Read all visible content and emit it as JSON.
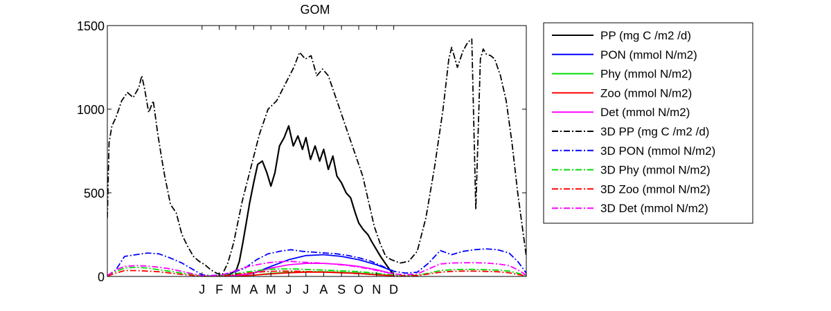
{
  "chart_data": {
    "type": "line",
    "title": "GOM",
    "xlabel": "",
    "ylabel": "",
    "xlim": [
      0,
      730
    ],
    "ylim": [
      0,
      1500
    ],
    "yticks": [
      0,
      500,
      1000,
      1500
    ],
    "month_ticks": {
      "labels": [
        "J",
        "F",
        "M",
        "A",
        "M",
        "J",
        "J",
        "A",
        "S",
        "O",
        "N",
        "D"
      ],
      "positions": [
        165,
        195,
        224,
        255,
        285,
        316,
        346,
        377,
        408,
        438,
        469,
        499
      ]
    },
    "legend_position": "outside-right",
    "series": [
      {
        "name": "PP (mg C /m2 /d)",
        "color": "#000000",
        "dash": "solid",
        "x": [
          165,
          180,
          195,
          205,
          215,
          225,
          230,
          236,
          242,
          248,
          255,
          262,
          270,
          278,
          285,
          292,
          300,
          308,
          316,
          324,
          332,
          340,
          346,
          354,
          362,
          370,
          377,
          385,
          393,
          400,
          408,
          416,
          424,
          432,
          438,
          446,
          454,
          462,
          469,
          476,
          484,
          492,
          499
        ],
        "y": [
          0,
          0,
          2,
          5,
          15,
          40,
          90,
          200,
          320,
          440,
          560,
          670,
          690,
          620,
          540,
          620,
          780,
          830,
          900,
          780,
          840,
          760,
          830,
          700,
          780,
          690,
          760,
          640,
          720,
          600,
          560,
          500,
          470,
          380,
          320,
          280,
          250,
          200,
          160,
          120,
          80,
          40,
          10
        ]
      },
      {
        "name": "PON (mmol N/m2)",
        "color": "#0000ff",
        "dash": "solid",
        "x": [
          165,
          195,
          224,
          255,
          285,
          316,
          346,
          377,
          408,
          438,
          469,
          499
        ],
        "y": [
          0,
          2,
          5,
          20,
          60,
          100,
          125,
          130,
          120,
          100,
          70,
          30
        ]
      },
      {
        "name": "Phy (mmol N/m2)",
        "color": "#00dd00",
        "dash": "solid",
        "x": [
          165,
          195,
          224,
          255,
          285,
          316,
          346,
          377,
          408,
          438,
          469,
          499
        ],
        "y": [
          0,
          1,
          3,
          8,
          18,
          25,
          28,
          28,
          25,
          20,
          12,
          5
        ]
      },
      {
        "name": "Zoo (mmol N/m2)",
        "color": "#ff0000",
        "dash": "solid",
        "x": [
          165,
          195,
          224,
          255,
          285,
          316,
          346,
          377,
          408,
          438,
          469,
          499
        ],
        "y": [
          0,
          1,
          3,
          8,
          15,
          22,
          25,
          25,
          22,
          18,
          10,
          4
        ]
      },
      {
        "name": "Det (mmol N/m2)",
        "color": "#ff00ff",
        "dash": "solid",
        "x": [
          165,
          195,
          224,
          255,
          285,
          316,
          346,
          377,
          408,
          438,
          469,
          499
        ],
        "y": [
          0,
          2,
          6,
          20,
          50,
          70,
          78,
          78,
          72,
          60,
          40,
          15
        ]
      },
      {
        "name": "3D PP (mg C /m2 /d)",
        "color": "#000000",
        "dash": "dashdot",
        "x": [
          0,
          3,
          8,
          15,
          25,
          35,
          45,
          55,
          60,
          65,
          72,
          80,
          88,
          95,
          100,
          110,
          120,
          130,
          140,
          150,
          160,
          170,
          180,
          190,
          200,
          210,
          220,
          235,
          250,
          265,
          280,
          295,
          310,
          325,
          335,
          345,
          355,
          365,
          375,
          385,
          395,
          405,
          415,
          425,
          435,
          445,
          455,
          465,
          475,
          485,
          495,
          510,
          525,
          540,
          555,
          570,
          585,
          595,
          600,
          610,
          620,
          628,
          635,
          642,
          650,
          655,
          660,
          668,
          675,
          685,
          695,
          705,
          715,
          730
        ],
        "y": [
          350,
          800,
          900,
          950,
          1050,
          1100,
          1070,
          1130,
          1200,
          1120,
          980,
          1050,
          850,
          700,
          600,
          430,
          380,
          250,
          180,
          120,
          90,
          70,
          40,
          20,
          10,
          80,
          200,
          450,
          650,
          850,
          1000,
          1050,
          1150,
          1250,
          1340,
          1300,
          1320,
          1200,
          1240,
          1200,
          1100,
          1000,
          900,
          800,
          700,
          600,
          450,
          300,
          200,
          120,
          100,
          80,
          90,
          150,
          350,
          650,
          1000,
          1300,
          1370,
          1250,
          1350,
          1400,
          1420,
          400,
          1300,
          1360,
          1330,
          1320,
          1300,
          1200,
          1050,
          800,
          500,
          120
        ]
      },
      {
        "name": "3D PON (mmol N/m2)",
        "color": "#0000ff",
        "dash": "dashdot",
        "x": [
          0,
          15,
          30,
          50,
          70,
          90,
          110,
          130,
          150,
          165,
          180,
          200,
          220,
          240,
          260,
          280,
          300,
          320,
          340,
          360,
          380,
          400,
          420,
          440,
          460,
          480,
          500,
          520,
          540,
          560,
          580,
          600,
          620,
          640,
          660,
          680,
          700,
          715,
          730
        ],
        "y": [
          5,
          40,
          120,
          130,
          140,
          135,
          110,
          80,
          40,
          10,
          5,
          10,
          25,
          50,
          100,
          135,
          150,
          160,
          150,
          145,
          140,
          135,
          125,
          110,
          90,
          60,
          30,
          20,
          25,
          80,
          155,
          130,
          150,
          160,
          165,
          160,
          140,
          90,
          20
        ]
      },
      {
        "name": "3D Phy (mmol N/m2)",
        "color": "#00dd00",
        "dash": "dashdot",
        "x": [
          0,
          15,
          30,
          50,
          70,
          90,
          110,
          130,
          150,
          165,
          180,
          200,
          220,
          240,
          260,
          280,
          300,
          320,
          340,
          360,
          380,
          400,
          420,
          440,
          460,
          480,
          500,
          520,
          540,
          560,
          580,
          600,
          620,
          640,
          660,
          680,
          700,
          715,
          730
        ],
        "y": [
          5,
          30,
          50,
          55,
          50,
          40,
          30,
          20,
          10,
          3,
          2,
          5,
          15,
          25,
          35,
          42,
          45,
          45,
          43,
          40,
          38,
          35,
          32,
          28,
          22,
          15,
          8,
          5,
          8,
          20,
          35,
          40,
          42,
          42,
          40,
          38,
          32,
          20,
          5
        ]
      },
      {
        "name": "3D Zoo (mmol N/m2)",
        "color": "#ff0000",
        "dash": "dashdot",
        "x": [
          0,
          15,
          30,
          50,
          70,
          90,
          110,
          130,
          150,
          165,
          180,
          200,
          220,
          240,
          260,
          280,
          300,
          320,
          340,
          360,
          380,
          400,
          420,
          440,
          460,
          480,
          500,
          520,
          540,
          560,
          580,
          600,
          620,
          640,
          660,
          680,
          700,
          715,
          730
        ],
        "y": [
          2,
          20,
          35,
          35,
          32,
          28,
          20,
          12,
          6,
          2,
          1,
          3,
          10,
          18,
          25,
          30,
          32,
          32,
          30,
          28,
          26,
          24,
          20,
          16,
          12,
          8,
          4,
          3,
          5,
          15,
          25,
          30,
          32,
          32,
          30,
          28,
          22,
          12,
          3
        ]
      },
      {
        "name": "3D Det (mmol N/m2)",
        "color": "#ff00ff",
        "dash": "dashdot",
        "x": [
          0,
          15,
          30,
          50,
          70,
          90,
          110,
          130,
          150,
          165,
          180,
          200,
          220,
          240,
          260,
          280,
          300,
          320,
          340,
          360,
          380,
          400,
          420,
          440,
          460,
          480,
          500,
          520,
          540,
          560,
          580,
          600,
          620,
          640,
          660,
          680,
          700,
          715,
          730
        ],
        "y": [
          5,
          40,
          60,
          65,
          62,
          55,
          45,
          30,
          15,
          5,
          3,
          10,
          30,
          55,
          70,
          82,
          88,
          90,
          85,
          82,
          78,
          72,
          65,
          55,
          42,
          28,
          15,
          10,
          15,
          45,
          75,
          80,
          82,
          82,
          80,
          75,
          65,
          40,
          8
        ]
      }
    ]
  }
}
